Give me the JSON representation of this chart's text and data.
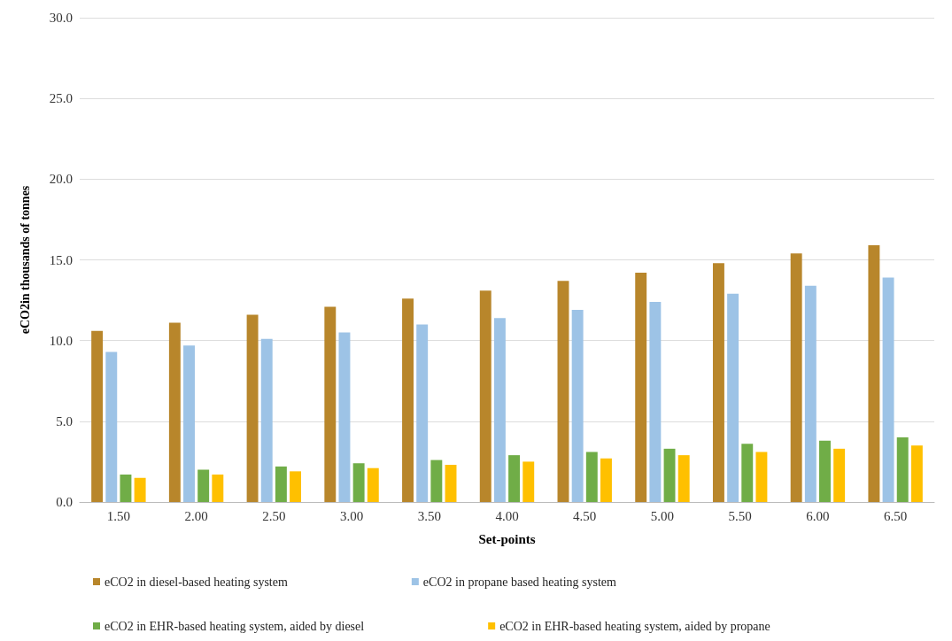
{
  "chart_data": {
    "type": "bar",
    "xlabel": "Set-points",
    "ylabel": "eCO2in thousands of tonnes",
    "categories": [
      "1.50",
      "2.00",
      "2.50",
      "3.00",
      "3.50",
      "4.00",
      "4.50",
      "5.00",
      "5.50",
      "6.00",
      "6.50"
    ],
    "series": [
      {
        "name": "eCO2 in diesel-based heating system",
        "color": "#b8862b",
        "values": [
          10.6,
          11.1,
          11.6,
          12.1,
          12.6,
          13.1,
          13.7,
          14.2,
          14.8,
          15.4,
          15.9
        ]
      },
      {
        "name": "eCO2 in propane based heating system",
        "color": "#9dc3e6",
        "values": [
          9.3,
          9.7,
          10.1,
          10.5,
          11.0,
          11.4,
          11.9,
          12.4,
          12.9,
          13.4,
          13.9
        ]
      },
      {
        "name": "eCO2 in EHR-based heating system, aided by diesel",
        "color": "#70ad47",
        "values": [
          1.7,
          2.0,
          2.2,
          2.4,
          2.6,
          2.9,
          3.1,
          3.3,
          3.6,
          3.8,
          4.0
        ]
      },
      {
        "name": "eCO2 in EHR-based heating system, aided by propane",
        "color": "#ffc000",
        "values": [
          1.5,
          1.7,
          1.9,
          2.1,
          2.3,
          2.5,
          2.7,
          2.9,
          3.1,
          3.3,
          3.5
        ]
      }
    ],
    "ylim": [
      0,
      30
    ],
    "yticks": [
      {
        "value": 0,
        "label": "0.0"
      },
      {
        "value": 5,
        "label": "5.0"
      },
      {
        "value": 10,
        "label": "10.0"
      },
      {
        "value": 15,
        "label": "15.0"
      },
      {
        "value": 20,
        "label": "20.0"
      },
      {
        "value": 25,
        "label": "25.0"
      },
      {
        "value": 30,
        "label": "30.0"
      }
    ],
    "grid": "y",
    "legend": "bottom"
  }
}
